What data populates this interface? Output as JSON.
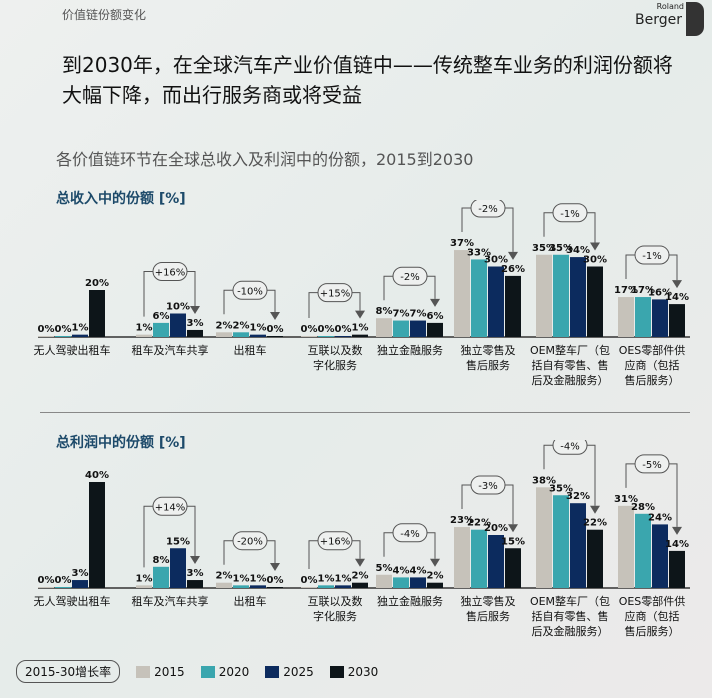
{
  "header": {
    "section": "价值链份额变化",
    "logo_text": [
      "Roland",
      "Berger"
    ],
    "title": "到2030年，在全球汽车产业价值链中——传统整车业务的利润份额将大幅下降，而出行服务商或将受益",
    "subtitle": "各价值链环节在全球总收入及利润中的份额，2015到2030"
  },
  "colors": {
    "2015": "#c6c2ba",
    "2020": "#3aa6ae",
    "2025": "#0c2b5e",
    "2030": "#0d1519"
  },
  "legend": {
    "growth_label": "2015-30增长率",
    "years": [
      "2015",
      "2020",
      "2025",
      "2030"
    ]
  },
  "chart_data": [
    {
      "type": "bar",
      "title": "总收入中的份额 [%]",
      "categories": [
        [
          "无人驾驶出租车"
        ],
        [
          "租车及汽车共享"
        ],
        [
          "出租车"
        ],
        [
          "互联以及数",
          "字化服务"
        ],
        [
          "独立金融服务"
        ],
        [
          "独立零售及",
          "售后服务"
        ],
        [
          "OEM整车厂（包",
          "括自有零售、售",
          "后及金融服务）"
        ],
        [
          "OES零部件供",
          "应商（包括",
          "售后服务）"
        ]
      ],
      "series": [
        {
          "name": "2015",
          "values": [
            0,
            1,
            2,
            0,
            8,
            37,
            35,
            17
          ]
        },
        {
          "name": "2020",
          "values": [
            0,
            6,
            2,
            0,
            7,
            33,
            35,
            17
          ]
        },
        {
          "name": "2025",
          "values": [
            1,
            10,
            1,
            0,
            7,
            30,
            34,
            16
          ]
        },
        {
          "name": "2030",
          "values": [
            20,
            3,
            0,
            1,
            6,
            26,
            30,
            14
          ]
        }
      ],
      "growth": [
        null,
        "+16%",
        "-10%",
        "+15%",
        "-2%",
        "-2%",
        "-1%",
        "-1%"
      ],
      "unit": "%"
    },
    {
      "type": "bar",
      "title": "总利润中的份额 [%]",
      "categories": [
        [
          "无人驾驶出租车"
        ],
        [
          "租车及汽车共享"
        ],
        [
          "出租车"
        ],
        [
          "互联以及数",
          "字化服务"
        ],
        [
          "独立金融服务"
        ],
        [
          "独立零售及",
          "售后服务"
        ],
        [
          "OEM整车厂（包",
          "括自有零售、售",
          "后及金融服务）"
        ],
        [
          "OES零部件供",
          "应商（包括",
          "售后服务）"
        ]
      ],
      "series": [
        {
          "name": "2015",
          "values": [
            0,
            1,
            2,
            0,
            5,
            23,
            38,
            31
          ]
        },
        {
          "name": "2020",
          "values": [
            0,
            8,
            1,
            1,
            4,
            22,
            35,
            28
          ]
        },
        {
          "name": "2025",
          "values": [
            3,
            15,
            1,
            1,
            4,
            20,
            32,
            24
          ]
        },
        {
          "name": "2030",
          "values": [
            40,
            3,
            0,
            2,
            2,
            15,
            22,
            14
          ]
        }
      ],
      "growth": [
        null,
        "+14%",
        "-20%",
        "+16%",
        "-4%",
        "-3%",
        "-4%",
        "-5%"
      ],
      "unit": "%"
    }
  ]
}
